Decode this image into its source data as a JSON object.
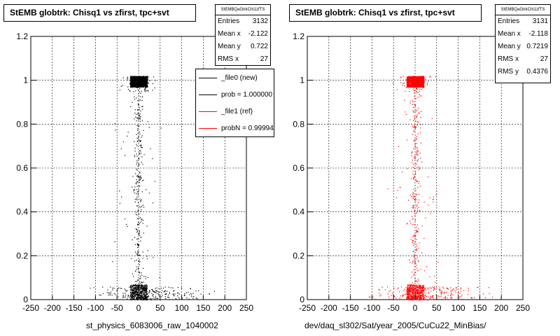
{
  "chart_data": [
    {
      "type": "scatter",
      "title": "StEMB globtrk: Chisq1 vs zfirst, tpc+svt",
      "xlabel": "st_physics_6083006_raw_1040002",
      "ylabel": "",
      "xlim": [
        -250,
        250
      ],
      "ylim": [
        0,
        1.2
      ],
      "xticks": [
        "-250",
        "-200",
        "-150",
        "-100",
        "-50",
        "0",
        "50",
        "100",
        "150",
        "200",
        "250"
      ],
      "yticks": [
        "0",
        "0.2",
        "0.4",
        "0.6",
        "0.8",
        "1",
        "1.2"
      ],
      "grid": true,
      "marker_color": "#000000",
      "stats": {
        "name": "StEMBQaGtrkChi1zfTS",
        "rows": [
          {
            "label": "Entries",
            "value": "3132"
          },
          {
            "label": "Mean x",
            "value": "-2.122"
          },
          {
            "label": "Mean y",
            "value": "0.722"
          },
          {
            "label": "RMS x",
            "value": "27"
          }
        ]
      },
      "legend": [
        {
          "label": "_file0 (new)",
          "color": "#000000"
        },
        {
          "label": "prob = 1.000000",
          "color": "#000000"
        },
        {
          "label": "_file1 (ref)",
          "color": "#ff0000"
        },
        {
          "label": "probN = 0.99994",
          "color": "#ff0000"
        }
      ],
      "clusters": [
        {
          "x": [
            -20,
            20
          ],
          "y": [
            0.97,
            1.02
          ],
          "n": 1300,
          "kind": "dense"
        },
        {
          "x": [
            -20,
            20
          ],
          "y": [
            0.0,
            0.07
          ],
          "n": 500,
          "kind": "dense"
        },
        {
          "x": [
            -60,
            60
          ],
          "y": [
            0.95,
            1.02
          ],
          "n": 70,
          "kind": "sparse"
        },
        {
          "x": [
            -150,
            200
          ],
          "y": [
            0.0,
            0.06
          ],
          "n": 220,
          "kind": "sparse"
        },
        {
          "x": [
            -15,
            15
          ],
          "y": [
            0.07,
            0.95
          ],
          "n": 240,
          "kind": "sparse"
        },
        {
          "x": [
            -80,
            80
          ],
          "y": [
            0.07,
            0.95
          ],
          "n": 60,
          "kind": "sparse"
        }
      ]
    },
    {
      "type": "scatter",
      "title": "StEMB globtrk: Chisq1 vs zfirst, tpc+svt",
      "xlabel": "dev/daq_sl302/Sat/year_2005/CuCu22_MinBias/",
      "ylabel": "",
      "xlim": [
        -250,
        250
      ],
      "ylim": [
        0,
        1.2
      ],
      "xticks": [
        "-250",
        "-200",
        "-150",
        "-100",
        "-50",
        "0",
        "50",
        "100",
        "150",
        "200",
        "250"
      ],
      "yticks": [
        "0",
        "0.2",
        "0.4",
        "0.6",
        "0.8",
        "1",
        "1.2"
      ],
      "grid": true,
      "marker_color": "#ff0000",
      "stats": {
        "name": "StEMBQaGtrkChi1zfTS",
        "rows": [
          {
            "label": "Entries",
            "value": "3131"
          },
          {
            "label": "Mean x",
            "value": "-2.118"
          },
          {
            "label": "Mean y",
            "value": "0.7219"
          },
          {
            "label": "RMS x",
            "value": "27"
          },
          {
            "label": "RMS y",
            "value": "0.4376"
          }
        ]
      },
      "clusters": [
        {
          "x": [
            -20,
            20
          ],
          "y": [
            0.97,
            1.02
          ],
          "n": 1300,
          "kind": "dense"
        },
        {
          "x": [
            -20,
            20
          ],
          "y": [
            0.0,
            0.07
          ],
          "n": 500,
          "kind": "dense"
        },
        {
          "x": [
            -60,
            60
          ],
          "y": [
            0.95,
            1.02
          ],
          "n": 70,
          "kind": "sparse"
        },
        {
          "x": [
            -150,
            200
          ],
          "y": [
            0.0,
            0.06
          ],
          "n": 220,
          "kind": "sparse"
        },
        {
          "x": [
            -15,
            15
          ],
          "y": [
            0.07,
            0.95
          ],
          "n": 240,
          "kind": "sparse"
        },
        {
          "x": [
            -80,
            80
          ],
          "y": [
            0.07,
            0.95
          ],
          "n": 60,
          "kind": "sparse"
        }
      ]
    }
  ]
}
